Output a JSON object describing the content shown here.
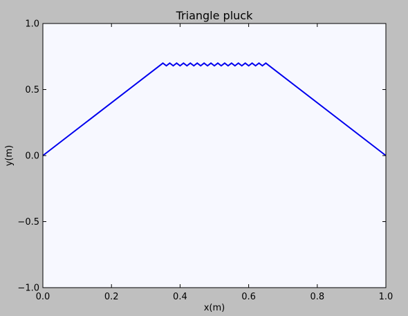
{
  "chart_data": {
    "type": "line",
    "title": "Triangle pluck",
    "xlabel": "x(m)",
    "ylabel": "y(m)",
    "xlim": [
      0.0,
      1.0
    ],
    "ylim": [
      -1.0,
      1.0
    ],
    "xticks": [
      0.0,
      0.2,
      0.4,
      0.6,
      0.8,
      1.0
    ],
    "xtick_labels": [
      "0.0",
      "0.2",
      "0.4",
      "0.6",
      "0.8",
      "1.0"
    ],
    "yticks": [
      -1.0,
      -0.5,
      0.0,
      0.5,
      1.0
    ],
    "ytick_labels": [
      "−1.0",
      "−0.5",
      "0.0",
      "0.5",
      "1.0"
    ],
    "grid": false,
    "plot_background": "#f7f8ff",
    "figure_background": "#bfbfbf",
    "series": [
      {
        "color": "#0000ee",
        "x": [
          0.0,
          0.35,
          0.36,
          0.37,
          0.38,
          0.39,
          0.4,
          0.41,
          0.42,
          0.43,
          0.44,
          0.45,
          0.46,
          0.47,
          0.48,
          0.49,
          0.5,
          0.51,
          0.52,
          0.53,
          0.54,
          0.55,
          0.56,
          0.57,
          0.58,
          0.59,
          0.6,
          0.61,
          0.62,
          0.63,
          0.64,
          0.65,
          1.0
        ],
        "y": [
          0.0,
          0.7,
          0.68,
          0.7,
          0.68,
          0.7,
          0.68,
          0.7,
          0.68,
          0.7,
          0.68,
          0.7,
          0.68,
          0.7,
          0.68,
          0.7,
          0.68,
          0.7,
          0.68,
          0.7,
          0.68,
          0.7,
          0.68,
          0.7,
          0.68,
          0.7,
          0.68,
          0.7,
          0.68,
          0.7,
          0.68,
          0.7,
          0.0
        ]
      }
    ]
  }
}
